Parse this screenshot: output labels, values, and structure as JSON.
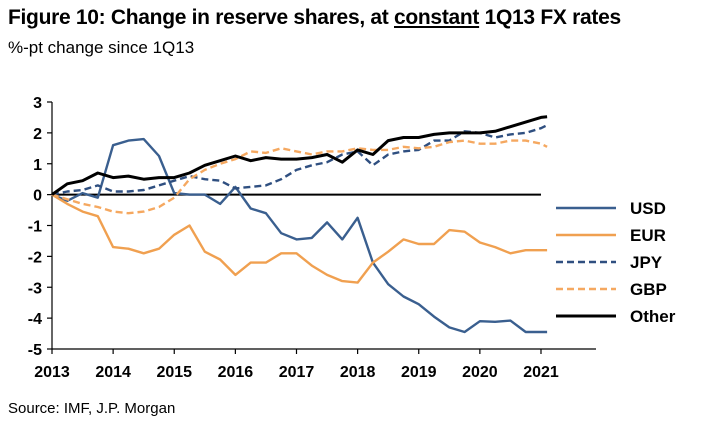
{
  "header": {
    "title_prefix": "Figure 10: Change in reserve shares, at ",
    "title_emph": "constant",
    "title_suffix": " 1Q13 FX rates",
    "subtitle": "%-pt change since 1Q13"
  },
  "footer": {
    "source": "Source: IMF, J.P. Morgan"
  },
  "chart_data": {
    "type": "line",
    "title": "Figure 10: Change in reserve shares, at constant 1Q13 FX rates",
    "ylabel": "%-pt change since 1Q13",
    "xlabel": "",
    "xlim": [
      2013,
      2021.9
    ],
    "ylim": [
      -5,
      3
    ],
    "x_ticks": [
      2013,
      2014,
      2015,
      2016,
      2017,
      2018,
      2019,
      2020,
      2021
    ],
    "x_tick_labels": [
      "2013",
      "2014",
      "2015",
      "2016",
      "2017",
      "2018",
      "2019",
      "2020",
      "2021"
    ],
    "y_ticks": [
      3,
      2,
      1,
      0,
      -1,
      -2,
      -3,
      -4,
      -5
    ],
    "y_tick_labels": [
      "3",
      "2",
      "1",
      "0",
      "-1",
      "-2",
      "-3",
      "-4",
      "-5"
    ],
    "zero_line": true,
    "legend_position": "right",
    "x": [
      2013.0,
      2013.25,
      2013.5,
      2013.75,
      2014.0,
      2014.25,
      2014.5,
      2014.75,
      2015.0,
      2015.25,
      2015.5,
      2015.75,
      2016.0,
      2016.25,
      2016.5,
      2016.75,
      2017.0,
      2017.25,
      2017.5,
      2017.75,
      2018.0,
      2018.25,
      2018.5,
      2018.75,
      2019.0,
      2019.25,
      2019.5,
      2019.75,
      2020.0,
      2020.25,
      2020.5,
      2020.75,
      2021.0,
      2021.1
    ],
    "series": [
      {
        "name": "USD",
        "color": "#3a5f8f",
        "dash": "solid",
        "values": [
          0,
          -0.2,
          0.05,
          -0.1,
          1.6,
          1.75,
          1.8,
          1.25,
          0.05,
          0.0,
          0.0,
          -0.3,
          0.25,
          -0.45,
          -0.6,
          -1.25,
          -1.45,
          -1.4,
          -0.9,
          -1.45,
          -0.75,
          -2.2,
          -2.9,
          -3.3,
          -3.55,
          -3.95,
          -4.3,
          -4.45,
          -4.1,
          -4.12,
          -4.08,
          -4.45,
          -4.45,
          -4.45
        ]
      },
      {
        "name": "EUR",
        "color": "#f0a050",
        "dash": "solid",
        "values": [
          0,
          -0.3,
          -0.55,
          -0.7,
          -1.7,
          -1.75,
          -1.9,
          -1.75,
          -1.3,
          -1.0,
          -1.85,
          -2.1,
          -2.6,
          -2.2,
          -2.2,
          -1.9,
          -1.9,
          -2.3,
          -2.6,
          -2.8,
          -2.85,
          -2.2,
          -1.85,
          -1.45,
          -1.6,
          -1.6,
          -1.15,
          -1.2,
          -1.55,
          -1.7,
          -1.9,
          -1.8,
          -1.8,
          -1.8
        ]
      },
      {
        "name": "JPY",
        "color": "#2f4f80",
        "dash": "dashed",
        "values": [
          0,
          0.1,
          0.15,
          0.3,
          0.1,
          0.1,
          0.15,
          0.3,
          0.45,
          0.6,
          0.5,
          0.45,
          0.2,
          0.25,
          0.3,
          0.5,
          0.8,
          0.95,
          1.05,
          1.3,
          1.4,
          0.95,
          1.3,
          1.4,
          1.45,
          1.75,
          1.75,
          2.05,
          2.0,
          1.85,
          1.95,
          2.0,
          2.15,
          2.25
        ]
      },
      {
        "name": "GBP",
        "color": "#f5a860",
        "dash": "dashed",
        "values": [
          0,
          -0.15,
          -0.3,
          -0.4,
          -0.55,
          -0.6,
          -0.55,
          -0.4,
          -0.1,
          0.5,
          0.8,
          1.0,
          1.15,
          1.4,
          1.35,
          1.5,
          1.4,
          1.3,
          1.4,
          1.4,
          1.5,
          1.45,
          1.45,
          1.55,
          1.5,
          1.55,
          1.7,
          1.75,
          1.65,
          1.65,
          1.75,
          1.75,
          1.65,
          1.55
        ]
      },
      {
        "name": "Other",
        "color": "#000000",
        "dash": "solid",
        "values": [
          0,
          0.35,
          0.45,
          0.7,
          0.55,
          0.6,
          0.5,
          0.55,
          0.55,
          0.7,
          0.95,
          1.1,
          1.25,
          1.1,
          1.2,
          1.15,
          1.15,
          1.2,
          1.3,
          1.05,
          1.45,
          1.3,
          1.75,
          1.85,
          1.85,
          1.95,
          2.0,
          2.0,
          2.0,
          2.05,
          2.2,
          2.35,
          2.5,
          2.52
        ]
      }
    ]
  }
}
